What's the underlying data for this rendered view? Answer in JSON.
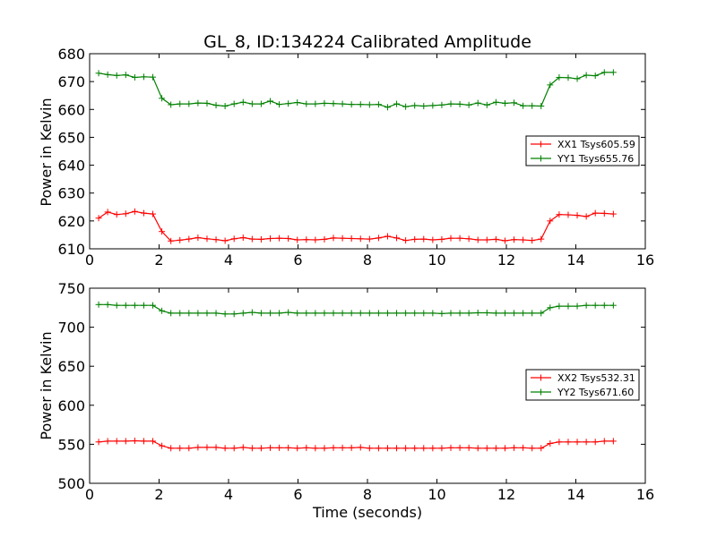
{
  "chart_data": [
    {
      "type": "line",
      "title": "GL_8, ID:134224 Calibrated Amplitude",
      "xlabel": "",
      "ylabel": "Power in Kelvin",
      "xlim": [
        0,
        16
      ],
      "ylim": [
        610,
        680
      ],
      "xticks": [
        0,
        2,
        4,
        6,
        8,
        10,
        12,
        14,
        16
      ],
      "yticks": [
        610,
        620,
        630,
        640,
        650,
        660,
        670,
        680
      ],
      "legend_position": "center-right",
      "x": [
        0.26,
        0.52,
        0.78,
        1.04,
        1.3,
        1.56,
        1.82,
        2.08,
        2.34,
        2.6,
        2.86,
        3.12,
        3.38,
        3.64,
        3.9,
        4.16,
        4.42,
        4.68,
        4.94,
        5.2,
        5.46,
        5.72,
        5.98,
        6.24,
        6.5,
        6.76,
        7.02,
        7.28,
        7.54,
        7.8,
        8.06,
        8.32,
        8.58,
        8.84,
        9.1,
        9.36,
        9.62,
        9.88,
        10.14,
        10.4,
        10.66,
        10.92,
        11.18,
        11.44,
        11.7,
        11.96,
        12.22,
        12.48,
        12.74,
        13.0,
        13.26,
        13.52,
        13.78,
        14.04,
        14.3,
        14.56,
        14.82,
        15.08
      ],
      "series": [
        {
          "name": "XX1 Tsys605.59",
          "color": "#ff0000",
          "values": [
            621.0,
            623.2,
            622.3,
            622.6,
            623.4,
            622.8,
            622.5,
            616.2,
            612.8,
            613.1,
            613.5,
            614.0,
            613.6,
            613.3,
            612.9,
            613.6,
            614.0,
            613.5,
            613.4,
            613.7,
            613.8,
            613.7,
            613.2,
            613.3,
            613.2,
            613.4,
            613.9,
            613.8,
            613.7,
            613.6,
            613.5,
            613.9,
            614.5,
            613.9,
            613.0,
            613.4,
            613.5,
            613.2,
            613.4,
            613.8,
            613.8,
            613.6,
            613.2,
            613.2,
            613.4,
            612.9,
            613.3,
            613.2,
            613.0,
            613.5,
            620.0,
            622.3,
            622.2,
            622.0,
            621.6,
            622.8,
            622.7,
            622.5
          ]
        },
        {
          "name": "YY1 Tsys655.76",
          "color": "#008000",
          "values": [
            673.0,
            672.5,
            672.2,
            672.4,
            671.5,
            671.7,
            671.6,
            664.0,
            661.7,
            662.0,
            662.0,
            662.3,
            662.2,
            661.5,
            661.2,
            662.0,
            662.6,
            662.0,
            662.0,
            663.0,
            661.8,
            662.1,
            662.5,
            662.0,
            662.0,
            662.2,
            662.1,
            662.0,
            661.8,
            661.8,
            661.7,
            661.8,
            660.8,
            662.0,
            661.0,
            661.4,
            661.2,
            661.4,
            661.6,
            662.0,
            661.9,
            661.6,
            662.3,
            661.6,
            662.6,
            662.2,
            662.4,
            661.3,
            661.3,
            661.2,
            668.8,
            671.5,
            671.4,
            671.0,
            672.3,
            672.1,
            673.3,
            673.3
          ]
        }
      ]
    },
    {
      "type": "line",
      "title": "",
      "xlabel": "Time (seconds)",
      "ylabel": "Power in Kelvin",
      "xlim": [
        0,
        16
      ],
      "ylim": [
        500,
        750
      ],
      "xticks": [
        0,
        2,
        4,
        6,
        8,
        10,
        12,
        14,
        16
      ],
      "yticks": [
        500,
        550,
        600,
        650,
        700,
        750
      ],
      "legend_position": "center-right",
      "x": [
        0.26,
        0.52,
        0.78,
        1.04,
        1.3,
        1.56,
        1.82,
        2.08,
        2.34,
        2.6,
        2.86,
        3.12,
        3.38,
        3.64,
        3.9,
        4.16,
        4.42,
        4.68,
        4.94,
        5.2,
        5.46,
        5.72,
        5.98,
        6.24,
        6.5,
        6.76,
        7.02,
        7.28,
        7.54,
        7.8,
        8.06,
        8.32,
        8.58,
        8.84,
        9.1,
        9.36,
        9.62,
        9.88,
        10.14,
        10.4,
        10.66,
        10.92,
        11.18,
        11.44,
        11.7,
        11.96,
        12.22,
        12.48,
        12.74,
        13.0,
        13.26,
        13.52,
        13.78,
        14.04,
        14.3,
        14.56,
        14.82,
        15.08
      ],
      "series": [
        {
          "name": "XX2 Tsys532.31",
          "color": "#ff0000",
          "values": [
            553.0,
            554.0,
            554.0,
            554.0,
            554.5,
            554.0,
            554.0,
            548.0,
            545.0,
            545.0,
            545.0,
            546.0,
            546.0,
            546.0,
            545.0,
            545.0,
            546.0,
            545.0,
            545.0,
            545.5,
            545.5,
            545.5,
            545.0,
            545.5,
            545.0,
            545.0,
            545.5,
            545.5,
            545.5,
            546.0,
            545.0,
            545.0,
            545.0,
            545.0,
            545.0,
            545.0,
            545.0,
            545.0,
            545.0,
            545.5,
            545.5,
            545.5,
            545.0,
            545.0,
            545.0,
            545.0,
            545.5,
            545.5,
            545.0,
            545.0,
            551.0,
            553.0,
            553.0,
            553.0,
            553.0,
            553.0,
            554.0,
            554.0
          ]
        },
        {
          "name": "YY2 Tsys671.60",
          "color": "#008000",
          "values": [
            729.0,
            729.0,
            728.0,
            728.0,
            728.0,
            728.0,
            728.0,
            721.0,
            718.0,
            718.0,
            718.0,
            718.0,
            718.0,
            718.0,
            717.0,
            717.0,
            718.0,
            719.0,
            718.0,
            718.0,
            718.0,
            719.0,
            718.0,
            718.0,
            718.0,
            718.0,
            718.0,
            718.0,
            718.0,
            718.0,
            718.0,
            718.0,
            718.0,
            718.0,
            718.0,
            718.0,
            718.0,
            718.0,
            717.5,
            718.0,
            718.0,
            718.0,
            718.5,
            718.5,
            718.0,
            718.0,
            718.0,
            718.0,
            718.0,
            718.0,
            725.0,
            727.0,
            727.0,
            727.0,
            728.0,
            728.0,
            728.0,
            728.0
          ]
        }
      ]
    }
  ]
}
